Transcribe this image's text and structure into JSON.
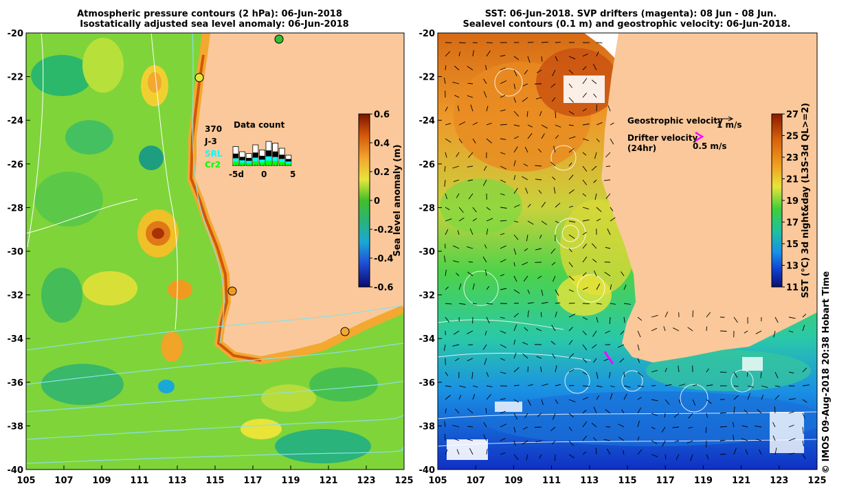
{
  "left_map": {
    "title_line1": "Atmospheric pressure contours (2 hPa): 06-Jun-2018",
    "title_line2": "Isostatically adjusted sea level anomaly: 06-Jun-2018",
    "x_ticks": [
      "105",
      "107",
      "109",
      "111",
      "113",
      "115",
      "117",
      "119",
      "121",
      "123",
      "125"
    ],
    "y_ticks": [
      "-20",
      "-22",
      "-24",
      "-26",
      "-28",
      "-30",
      "-32",
      "-34",
      "-36",
      "-38",
      "-40"
    ],
    "colorbar": {
      "label": "Sea level anomaly (m)",
      "ticks": [
        "0.6",
        "0.4",
        "0.2",
        "0",
        "-0.2",
        "-0.4",
        "-0.6"
      ]
    },
    "data_count": {
      "title": "Data count",
      "max_label": "370",
      "satellites": [
        {
          "name": "J-3",
          "color": "#000000"
        },
        {
          "name": "SRL",
          "color": "#00ffff"
        },
        {
          "name": "Cr2",
          "color": "#00ff00"
        }
      ],
      "x_ticks": [
        "-5d",
        "0",
        "5"
      ]
    }
  },
  "right_map": {
    "title_line1": "SST: 06-Jun-2018. SVP drifters (magenta): 08 Jun - 08 Jun.",
    "title_line2": "Sealevel contours (0.1 m) and geostrophic velocity: 06-Jun-2018.",
    "x_ticks": [
      "105",
      "107",
      "109",
      "111",
      "113",
      "115",
      "117",
      "119",
      "121",
      "123",
      "125"
    ],
    "y_ticks": [
      "-20",
      "-22",
      "-24",
      "-26",
      "-28",
      "-30",
      "-32",
      "-34",
      "-36",
      "-38",
      "-40"
    ],
    "legend": {
      "geostrophic_label": "Geostrophic velocity",
      "geostrophic_scale": "1 m/s",
      "drifter_label_1": "Drifter velocity",
      "drifter_label_2": "(24hr)",
      "drifter_scale": "0.5 m/s",
      "drifter_color": "#ff00ff"
    },
    "colorbar": {
      "label": "SST (°C) 3d night&day (L3S-3d QL>=2)",
      "ticks": [
        "27",
        "25",
        "23",
        "21",
        "19",
        "17",
        "15",
        "13",
        "11"
      ]
    },
    "credit": "© IMOS 09-Aug-2018 20:38 Hobart Time"
  }
}
